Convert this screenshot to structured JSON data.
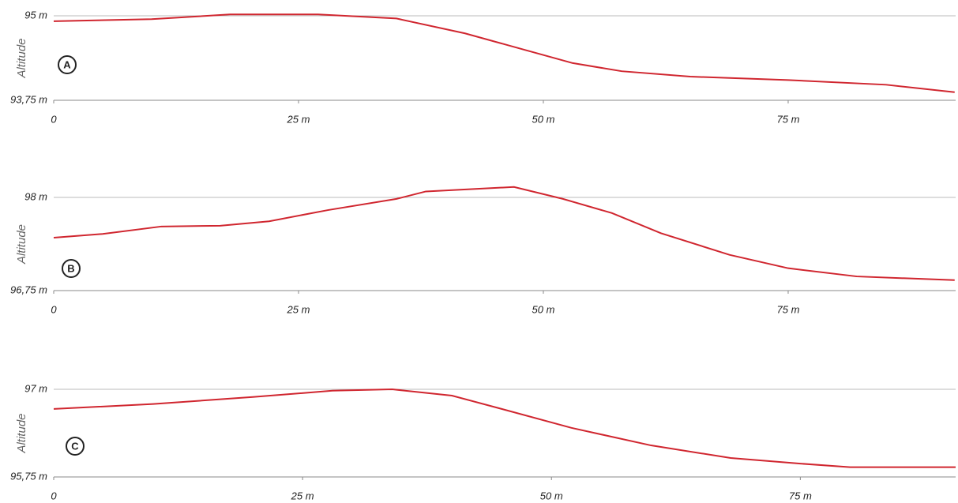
{
  "chart_data": [
    {
      "type": "line",
      "annotation": "A",
      "ylabel": "Altitude",
      "x": [
        0,
        10,
        18,
        27,
        35,
        42,
        48,
        53,
        58,
        65,
        75,
        85,
        92
      ],
      "series": [
        {
          "name": "A",
          "color": "#d0262f",
          "values": [
            94.92,
            94.95,
            95.02,
            95.02,
            94.96,
            94.74,
            94.5,
            94.3,
            94.18,
            94.1,
            94.05,
            93.98,
            93.87
          ]
        }
      ],
      "xlim": [
        0,
        92.1
      ],
      "xticks": [
        0,
        {
          "value": 25,
          "label": "25 m"
        },
        {
          "value": 50,
          "label": "50 m"
        },
        {
          "value": 75,
          "label": "75 m"
        }
      ],
      "ylim": [
        93.75,
        95
      ],
      "yticks": [
        {
          "value": 93.75,
          "label": "93,75 m"
        },
        {
          "value": 95,
          "label": "95 m"
        }
      ]
    },
    {
      "type": "line",
      "annotation": "B",
      "ylabel": "Altitude",
      "x": [
        0,
        5,
        11,
        17,
        22,
        28,
        35,
        38,
        47,
        52,
        57,
        62,
        69,
        75,
        82,
        92
      ],
      "series": [
        {
          "name": "B",
          "color": "#d0262f",
          "values": [
            97.46,
            97.51,
            97.61,
            97.62,
            97.68,
            97.83,
            97.98,
            98.08,
            98.14,
            97.98,
            97.79,
            97.52,
            97.23,
            97.05,
            96.94,
            96.89
          ]
        }
      ],
      "xlim": [
        0,
        92.1
      ],
      "xticks": [
        0,
        {
          "value": 25,
          "label": "25 m"
        },
        {
          "value": 50,
          "label": "50 m"
        },
        {
          "value": 75,
          "label": "75 m"
        }
      ],
      "ylim": [
        96.75,
        98
      ],
      "yticks": [
        {
          "value": 96.75,
          "label": "96,75 m"
        },
        {
          "value": 98,
          "label": "98 m"
        }
      ]
    },
    {
      "type": "line",
      "annotation": "C",
      "ylabel": "Altitude",
      "x": [
        0,
        10,
        20,
        28,
        34,
        40,
        45,
        52,
        60,
        68,
        75,
        80,
        90.6
      ],
      "series": [
        {
          "name": "C",
          "color": "#d0262f",
          "values": [
            96.72,
            96.79,
            96.89,
            96.98,
            97.0,
            96.91,
            96.72,
            96.45,
            96.2,
            96.02,
            95.94,
            95.89,
            95.89
          ]
        }
      ],
      "xlim": [
        0,
        90.6
      ],
      "xticks": [
        0,
        {
          "value": 25,
          "label": "25 m"
        },
        {
          "value": 50,
          "label": "50 m"
        },
        {
          "value": 75,
          "label": "75 m"
        }
      ],
      "ylim": [
        95.75,
        97
      ],
      "yticks": [
        {
          "value": 95.75,
          "label": "95,75 m"
        },
        {
          "value": 97,
          "label": "97 m"
        }
      ]
    }
  ]
}
